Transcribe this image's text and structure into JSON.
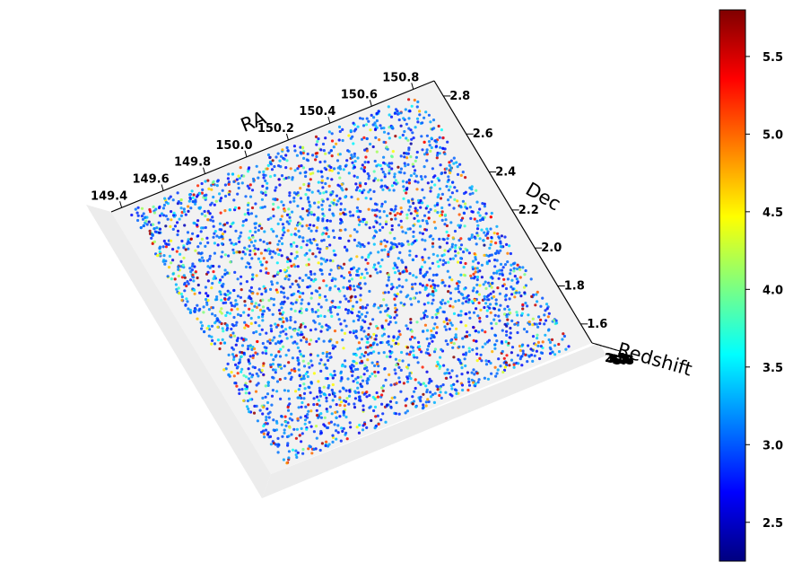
{
  "chart_data": {
    "type": "scatter",
    "projection": "3d",
    "xlabel": "RA",
    "ylabel": "Dec",
    "zlabel": "Redshift",
    "x_ticks": [
      "149.4",
      "149.6",
      "149.8",
      "150.0",
      "150.2",
      "150.4",
      "150.6",
      "150.8"
    ],
    "y_ticks": [
      "1.6",
      "1.8",
      "2.0",
      "2.2",
      "2.4",
      "2.6",
      "2.8"
    ],
    "z_ticks": [
      "2.5",
      "3.0",
      "3.5",
      "4.0",
      "4.5",
      "5.0",
      "5.5"
    ],
    "xlim": [
      149.35,
      150.9
    ],
    "ylim": [
      1.5,
      2.88
    ],
    "zlim": [
      2.3,
      5.8
    ],
    "colormap": "jet",
    "colorbar": {
      "range": [
        2.25,
        5.8
      ],
      "ticks": [
        "2.5",
        "3.0",
        "3.5",
        "4.0",
        "4.5",
        "5.0",
        "5.5"
      ]
    },
    "point_count": 3500,
    "redshift_distribution": "most sources between 2.8 and 3.5, sparse tail up to 5.8",
    "grid": false
  }
}
